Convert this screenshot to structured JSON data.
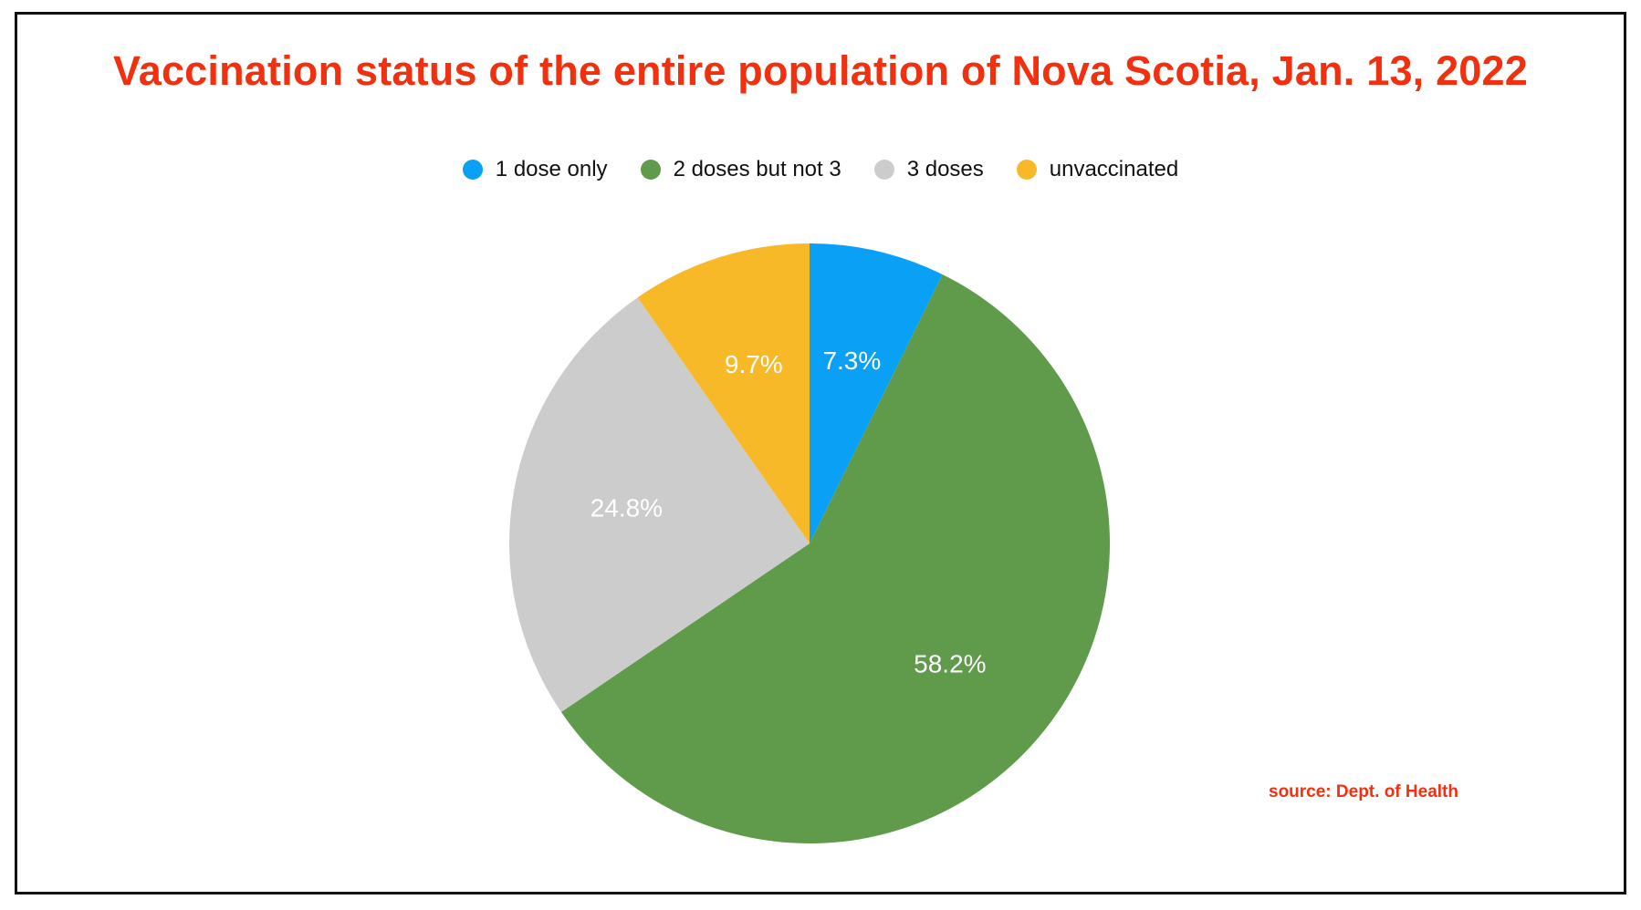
{
  "chart_data": {
    "type": "pie",
    "title": "Vaccination status of the entire population of Nova Scotia, Jan. 13, 2022",
    "legend_position": "top",
    "slices": [
      {
        "name": "1 dose only",
        "value": 7.3,
        "label": "7.3%",
        "color": "#0aa0f5"
      },
      {
        "name": "2 doses but not 3",
        "value": 58.2,
        "label": "58.2%",
        "color": "#5f9b4b"
      },
      {
        "name": "3 doses",
        "value": 24.8,
        "label": "24.8%",
        "color": "#cccccc"
      },
      {
        "name": "unvaccinated",
        "value": 9.7,
        "label": "9.7%",
        "color": "#f7b928"
      }
    ],
    "start_angle": "12 o'clock",
    "direction": "clockwise"
  },
  "source": "source: Dept. of Health",
  "colors": {
    "title": "#f0300f",
    "source": "#f0300f",
    "border": "#111111"
  }
}
